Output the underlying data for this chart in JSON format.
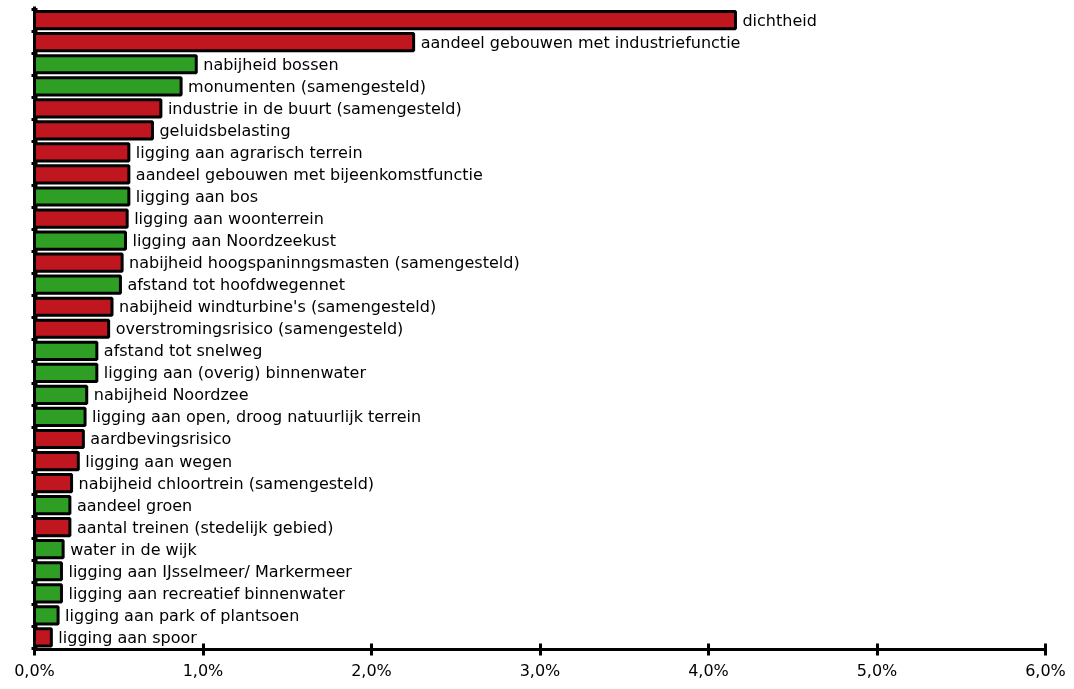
{
  "chart_data": {
    "type": "bar",
    "orientation": "horizontal",
    "categories": [
      "dichtheid",
      "aandeel gebouwen met industriefunctie",
      "nabijheid bossen",
      "monumenten (samengesteld)",
      "industrie in de buurt (samengesteld)",
      "geluidsbelasting",
      "ligging aan agrarisch terrein",
      "aandeel gebouwen met bijeenkomstfunctie",
      "ligging aan bos",
      "ligging aan woonterrein",
      "ligging aan Noordzeekust",
      "nabijheid hoogspaninngsmasten (samengesteld)",
      "afstand tot hoofdwegennet",
      "nabijheid windturbine's (samengesteld)",
      "overstromingsrisico (samengesteld)",
      "afstand tot snelweg",
      "ligging aan (overig) binnenwater",
      "nabijheid Noordzee",
      "ligging aan open, droog natuurlijk terrein",
      "aardbevingsrisico",
      "ligging aan wegen",
      "nabijheid chloortrein (samengesteld)",
      "aandeel groen",
      "aantal treinen (stedelijk gebied)",
      "water in de wijk",
      "ligging aan IJsselmeer/ Markermeer",
      "ligging aan recreatief binnenwater",
      "ligging aan park of plantsoen",
      "ligging aan spoor"
    ],
    "values": [
      4.16,
      2.25,
      0.96,
      0.87,
      0.75,
      0.7,
      0.56,
      0.56,
      0.56,
      0.55,
      0.54,
      0.52,
      0.51,
      0.46,
      0.44,
      0.37,
      0.37,
      0.31,
      0.3,
      0.29,
      0.26,
      0.22,
      0.21,
      0.21,
      0.17,
      0.16,
      0.16,
      0.14,
      0.1
    ],
    "colors": [
      "#c0161f",
      "#c0161f",
      "#2e9e24",
      "#2e9e24",
      "#c0161f",
      "#c0161f",
      "#c0161f",
      "#c0161f",
      "#2e9e24",
      "#c0161f",
      "#2e9e24",
      "#c0161f",
      "#2e9e24",
      "#c0161f",
      "#c0161f",
      "#2e9e24",
      "#2e9e24",
      "#2e9e24",
      "#2e9e24",
      "#c0161f",
      "#c0161f",
      "#c0161f",
      "#2e9e24",
      "#c0161f",
      "#2e9e24",
      "#2e9e24",
      "#2e9e24",
      "#2e9e24",
      "#c0161f"
    ],
    "xlim": [
      0,
      6
    ],
    "xticks": [
      {
        "value": 0,
        "label": "0,0%"
      },
      {
        "value": 1,
        "label": "1,0%"
      },
      {
        "value": 2,
        "label": "2,0%"
      },
      {
        "value": 3,
        "label": "3,0%"
      },
      {
        "value": 4,
        "label": "4,0%"
      },
      {
        "value": 5,
        "label": "5,0%"
      },
      {
        "value": 6,
        "label": "6,0%"
      }
    ],
    "tick_labels": "x",
    "grid": false
  }
}
